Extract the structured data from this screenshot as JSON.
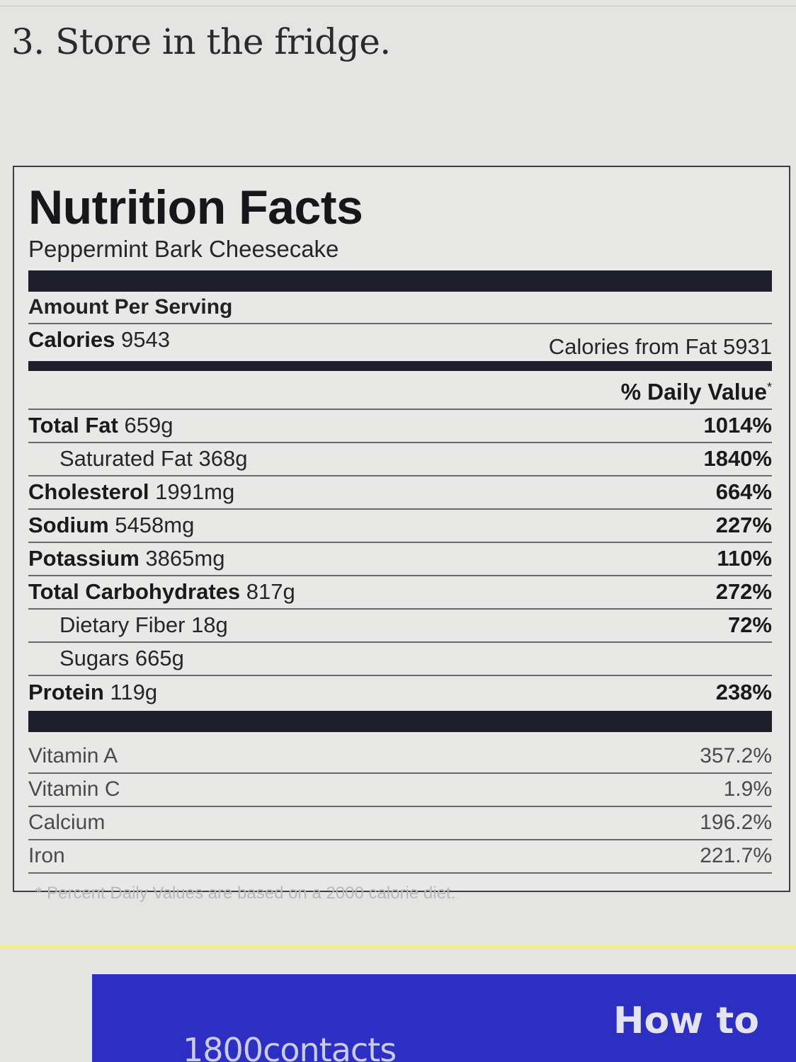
{
  "instruction": "3. Store in the fridge.",
  "nutrition": {
    "title": "Nutrition Facts",
    "subtitle": "Peppermint Bark Cheesecake",
    "amount_per_serving": "Amount Per Serving",
    "calories_label": "Calories",
    "calories_value": "9543",
    "calories_from_fat": "Calories from Fat 5931",
    "daily_value_header": "% Daily Value",
    "daily_value_marker": "*",
    "nutrients": [
      {
        "label": "Total Fat",
        "amount": "659g",
        "dv": "1014%"
      },
      {
        "label": "Saturated Fat",
        "amount": "368g",
        "dv": "1840%"
      },
      {
        "label": "Cholesterol",
        "amount": "1991mg",
        "dv": "664%"
      },
      {
        "label": "Sodium",
        "amount": "5458mg",
        "dv": "227%"
      },
      {
        "label": "Potassium",
        "amount": "3865mg",
        "dv": "110%"
      },
      {
        "label": "Total Carbohydrates",
        "amount": "817g",
        "dv": "272%"
      },
      {
        "label": "Dietary Fiber",
        "amount": "18g",
        "dv": "72%"
      },
      {
        "label": "Sugars",
        "amount": "665g",
        "dv": ""
      },
      {
        "label": "Protein",
        "amount": "119g",
        "dv": "238%"
      }
    ],
    "vitamins": [
      {
        "label": "Vitamin A",
        "dv": "357.2%"
      },
      {
        "label": "Vitamin C",
        "dv": "1.9%"
      },
      {
        "label": "Calcium",
        "dv": "196.2%"
      },
      {
        "label": "Iron",
        "dv": "221.7%"
      }
    ],
    "footnote": "* Percent Daily Values are based on a 2000 calorie diet."
  },
  "ad": {
    "logo_text": "1800contacts",
    "headline": "How to"
  },
  "colors": {
    "background": "#e4e5e2",
    "bar": "#1e1f2a",
    "ad_background": "#2d2fc2",
    "accent_rule": "#f0f07a"
  }
}
